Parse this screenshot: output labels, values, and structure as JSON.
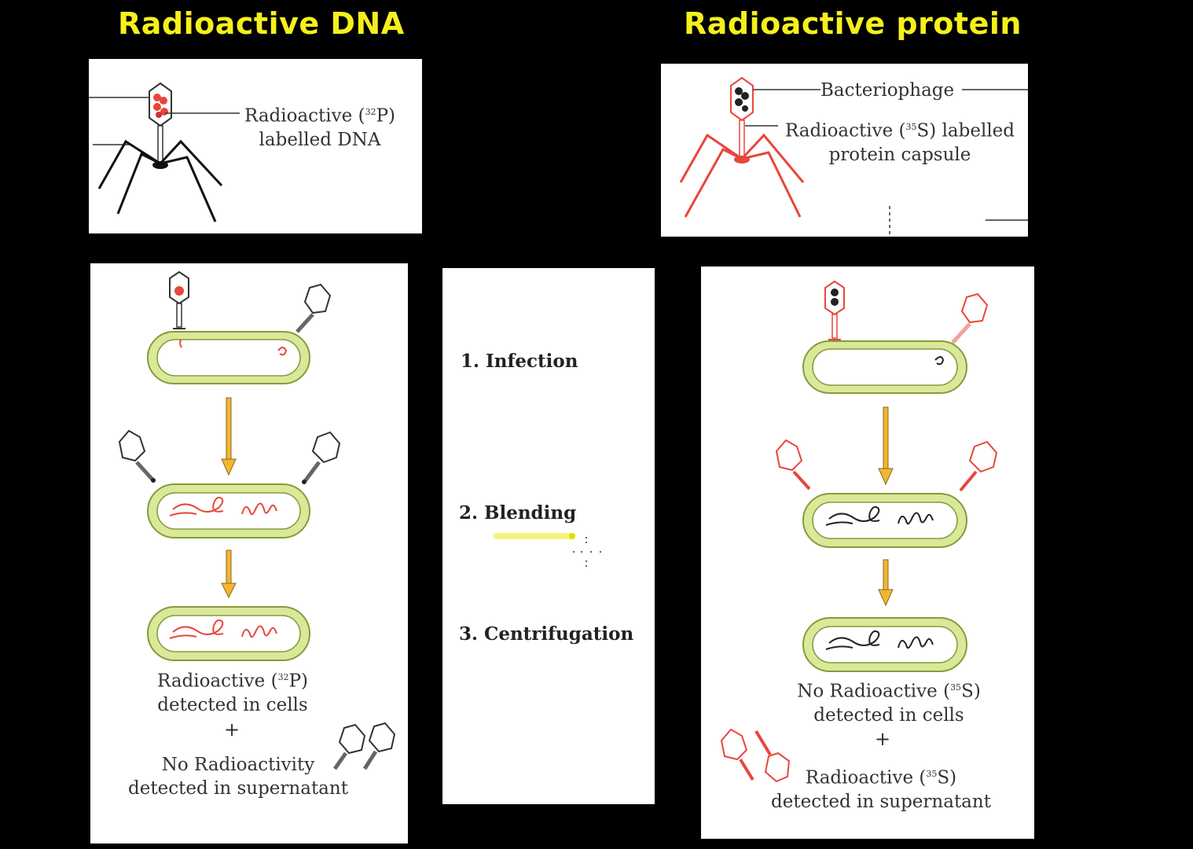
{
  "headings": {
    "left": "Radioactive DNA",
    "right": "Radioactive protein"
  },
  "top_left": {
    "label_line1": "Radioactive (",
    "isotope": "32",
    "label_element": "P)",
    "label_line2": "labelled DNA"
  },
  "top_right": {
    "bacteriophage": "Bacteriophage",
    "label_line1": "Radioactive (",
    "isotope": "35",
    "label_element": "S) labelled",
    "label_line2": "protein capsule"
  },
  "steps": [
    "1. Infection",
    "2. Blending",
    "3. Centrifugation"
  ],
  "left_result": {
    "line1_pre": "Radioactive (",
    "isotope": "32",
    "line1_post": "P)",
    "line2": "detected in cells",
    "plus": "+",
    "line3": "No Radioactivity",
    "line4": "detected in supernatant"
  },
  "right_result": {
    "line1_pre": "No Radioactive (",
    "isotope": "35",
    "line1_post": "S)",
    "line2": "detected in cells",
    "plus": "+",
    "line3_pre": "Radioactive (",
    "line3_post": "S)",
    "line4": "detected in supernatant"
  },
  "colors": {
    "heading": "#f5f01c",
    "radioactive": "#e8463c",
    "cell_fill": "#d9e99a",
    "arrow": "#f2b632"
  }
}
